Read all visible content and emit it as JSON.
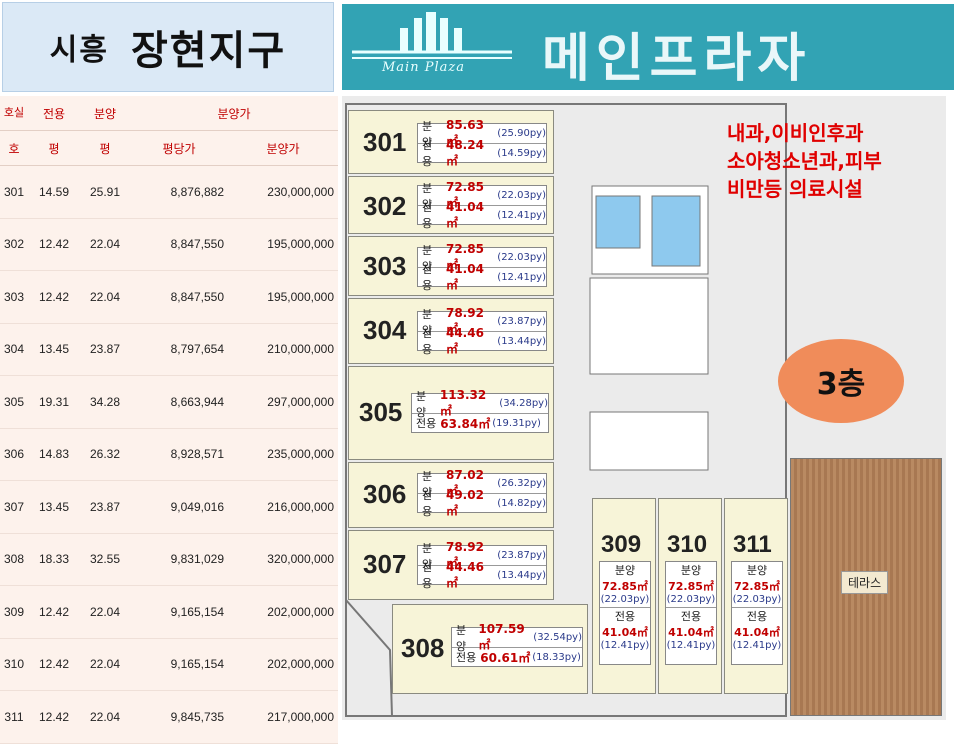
{
  "title": {
    "city": "시흥",
    "district": "장현지구"
  },
  "brand": {
    "name": "메인프라자",
    "logo_text": "Main Plaza"
  },
  "table": {
    "header1": {
      "room": "호실",
      "exclusive": "전용",
      "sale": "분양",
      "price": "분양가"
    },
    "header2": {
      "room": "호",
      "exclusive": "평",
      "sale": "평",
      "per_py": "평당가",
      "price": "분양가"
    },
    "rows": [
      {
        "room": "301",
        "excl": "14.59",
        "sale": "25.91",
        "per_py": "8,876,882",
        "price": "230,000,000"
      },
      {
        "room": "302",
        "excl": "12.42",
        "sale": "22.04",
        "per_py": "8,847,550",
        "price": "195,000,000"
      },
      {
        "room": "303",
        "excl": "12.42",
        "sale": "22.04",
        "per_py": "8,847,550",
        "price": "195,000,000"
      },
      {
        "room": "304",
        "excl": "13.45",
        "sale": "23.87",
        "per_py": "8,797,654",
        "price": "210,000,000"
      },
      {
        "room": "305",
        "excl": "19.31",
        "sale": "34.28",
        "per_py": "8,663,944",
        "price": "297,000,000"
      },
      {
        "room": "306",
        "excl": "14.83",
        "sale": "26.32",
        "per_py": "8,928,571",
        "price": "235,000,000"
      },
      {
        "room": "307",
        "excl": "13.45",
        "sale": "23.87",
        "per_py": "9,049,016",
        "price": "216,000,000"
      },
      {
        "room": "308",
        "excl": "18.33",
        "sale": "32.55",
        "per_py": "9,831,029",
        "price": "320,000,000"
      },
      {
        "room": "309",
        "excl": "12.42",
        "sale": "22.04",
        "per_py": "9,165,154",
        "price": "202,000,000"
      },
      {
        "room": "310",
        "excl": "12.42",
        "sale": "22.04",
        "per_py": "9,165,154",
        "price": "202,000,000"
      },
      {
        "room": "311",
        "excl": "12.42",
        "sale": "22.04",
        "per_py": "9,845,735",
        "price": "217,000,000"
      }
    ]
  },
  "plan": {
    "sale_label": "분양",
    "excl_label": "전용",
    "units": [
      {
        "no": "301",
        "sale": "85.63㎡",
        "sale_py": "(25.90py)",
        "excl": "48.24㎡",
        "excl_py": "(14.59py)"
      },
      {
        "no": "302",
        "sale": "72.85㎡",
        "sale_py": "(22.03py)",
        "excl": "41.04㎡",
        "excl_py": "(12.41py)"
      },
      {
        "no": "303",
        "sale": "72.85㎡",
        "sale_py": "(22.03py)",
        "excl": "41.04㎡",
        "excl_py": "(12.41py)"
      },
      {
        "no": "304",
        "sale": "78.92㎡",
        "sale_py": "(23.87py)",
        "excl": "44.46㎡",
        "excl_py": "(13.44py)"
      },
      {
        "no": "305",
        "sale": "113.32㎡",
        "sale_py": "(34.28py)",
        "excl": "63.84㎡",
        "excl_py": "(19.31py)"
      },
      {
        "no": "306",
        "sale": "87.02㎡",
        "sale_py": "(26.32py)",
        "excl": "49.02㎡",
        "excl_py": "(14.82py)"
      },
      {
        "no": "307",
        "sale": "78.92㎡",
        "sale_py": "(23.87py)",
        "excl": "44.46㎡",
        "excl_py": "(13.44py)"
      },
      {
        "no": "308",
        "sale": "107.59㎡",
        "sale_py": "(32.54py)",
        "excl": "60.61㎡",
        "excl_py": "(18.33py)"
      },
      {
        "no": "309",
        "sale": "72.85㎡",
        "sale_py": "(22.03py)",
        "excl": "41.04㎡",
        "excl_py": "(12.41py)"
      },
      {
        "no": "310",
        "sale": "72.85㎡",
        "sale_py": "(22.03py)",
        "excl": "41.04㎡",
        "excl_py": "(12.41py)"
      },
      {
        "no": "311",
        "sale": "72.85㎡",
        "sale_py": "(22.03py)",
        "excl": "41.04㎡",
        "excl_py": "(12.41py)"
      }
    ],
    "terrace": "테라스",
    "note_lines": [
      "내과,이비인후과",
      "소아청소년과,피부",
      "비만등 의료시설"
    ],
    "floor": "3층"
  },
  "colors": {
    "unit_fill": "#f7f4d8",
    "red": "#c00000",
    "banner": "#32a3b4",
    "badge": "#f08c5a",
    "terrace": "#b98a62"
  }
}
